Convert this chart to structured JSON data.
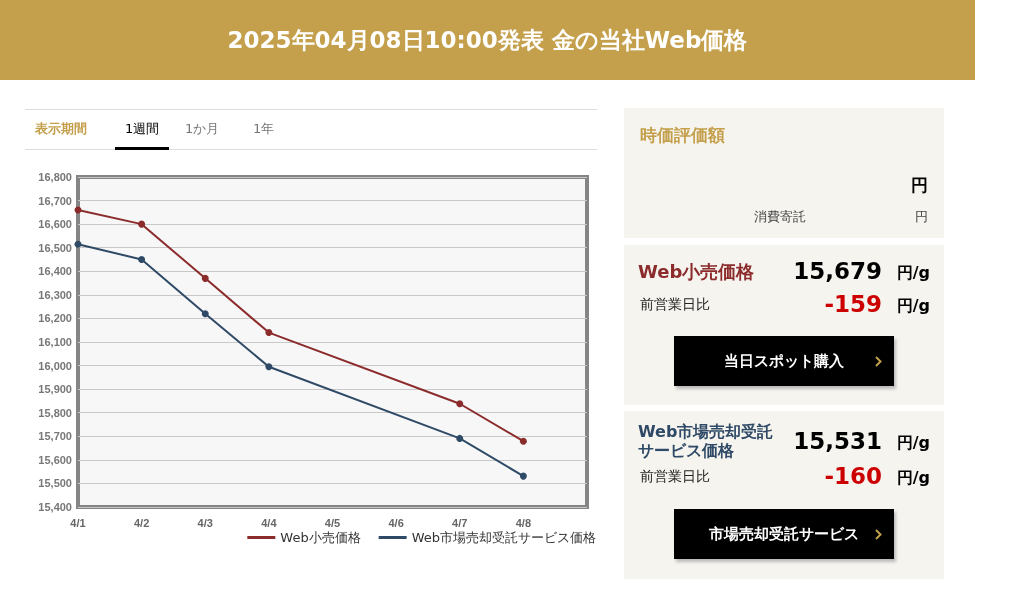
{
  "chart_data": [
    {
      "type": "line",
      "title": "2025年04月08日10:00発表 金の当社Web価格",
      "categories": [
        "4/1",
        "4/2",
        "4/3",
        "4/4",
        "4/5",
        "4/6",
        "4/7",
        "4/8",
        null
      ],
      "series": [
        {
          "name": "Web小売価格",
          "color": "#8b2b2b",
          "values": [
            16660,
            16600,
            16370,
            16140,
            null,
            null,
            15838,
            15679,
            null
          ]
        },
        {
          "name": "Web市場売却受託サービス価格",
          "color": "#2f4a66",
          "values": [
            16515,
            16450,
            16220,
            15995,
            null,
            null,
            15691,
            15531,
            null
          ]
        }
      ],
      "ylim": [
        15400,
        16800
      ],
      "yticks": [
        {
          "value": 15400,
          "label": "15,400"
        },
        {
          "value": 15500,
          "label": "15,500"
        },
        {
          "value": 15600,
          "label": "15,600"
        },
        {
          "value": 15700,
          "label": "15,700"
        },
        {
          "value": 15800,
          "label": "15,800"
        },
        {
          "value": 15900,
          "label": "15,900"
        },
        {
          "value": 16000,
          "label": "16,000"
        },
        {
          "value": 16100,
          "label": "16,100"
        },
        {
          "value": 16200,
          "label": "16,200"
        },
        {
          "value": 16300,
          "label": "16,300"
        },
        {
          "value": 16400,
          "label": "16,400"
        },
        {
          "value": 16500,
          "label": "16,500"
        },
        {
          "value": 16600,
          "label": "16,600"
        },
        {
          "value": 16700,
          "label": "16,700"
        },
        {
          "value": 16800,
          "label": "16,800"
        }
      ],
      "grid": "y",
      "legend": "bottom right",
      "marker": "circle",
      "line_style": "solid",
      "annotations": [
        "表示期間",
        "1週間",
        "1か月",
        "1年"
      ]
    },
    {
      "type": "other",
      "annotations": [
        "時価評価額",
        "円",
        "消費寄託",
        "円",
        "Web小売価格",
        "15,679",
        "円/g",
        "前営業日比",
        "-159",
        "円/g",
        "当日スポット購入",
        "Web市場売却受託サービス価格",
        "15,531",
        "円/g",
        "前営業日比",
        "-160",
        "円/g",
        "市場売却受託サービス"
      ]
    }
  ]
}
